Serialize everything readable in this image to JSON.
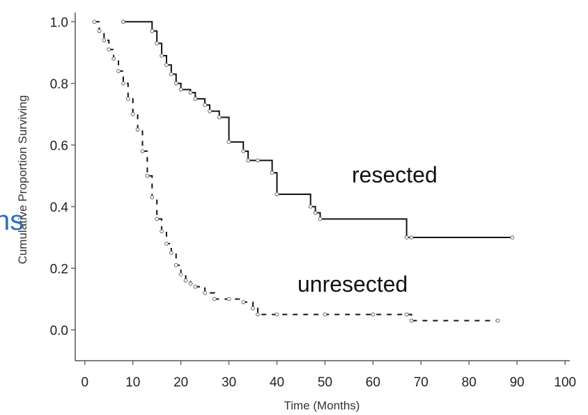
{
  "chart_data": {
    "type": "line",
    "title": "",
    "xlabel": "Time (Months)",
    "ylabel": "Cumulative Proportion Surviving",
    "xlim": [
      -2,
      101
    ],
    "ylim": [
      -0.1,
      1.03
    ],
    "xticks": [
      0,
      10,
      20,
      30,
      40,
      50,
      60,
      70,
      80,
      90,
      100
    ],
    "xtick_labels": [
      "0",
      "10",
      "20",
      "30",
      "40",
      "50",
      "60",
      "70",
      "80",
      "90",
      "100"
    ],
    "yticks": [
      0.0,
      0.2,
      0.4,
      0.6,
      0.8,
      1.0
    ],
    "ytick_labels": [
      "0.0",
      "0.2",
      "0.4",
      "0.6",
      "0.8",
      "1.0"
    ],
    "grid": false,
    "series": [
      {
        "name": "resected",
        "color": "#111111",
        "style": "solid",
        "x": [
          8,
          14,
          15,
          16,
          17,
          18,
          19,
          20,
          22,
          23,
          25,
          26,
          28,
          30,
          33,
          34,
          36,
          39,
          40,
          47,
          48,
          49,
          67,
          68,
          89
        ],
        "y": [
          1.0,
          0.97,
          0.93,
          0.89,
          0.86,
          0.83,
          0.8,
          0.78,
          0.77,
          0.75,
          0.73,
          0.71,
          0.69,
          0.61,
          0.58,
          0.55,
          0.55,
          0.51,
          0.44,
          0.4,
          0.38,
          0.36,
          0.3,
          0.3,
          0.3
        ]
      },
      {
        "name": "unresected",
        "color": "#111111",
        "style": "dashed",
        "x": [
          2,
          3,
          4,
          5,
          6,
          7,
          8,
          9,
          10,
          11,
          12,
          13,
          14,
          15,
          16,
          17,
          18,
          19,
          20,
          21,
          22,
          23,
          25,
          27,
          30,
          33,
          35,
          36,
          40,
          50,
          60,
          67,
          68,
          86
        ],
        "y": [
          1.0,
          0.97,
          0.94,
          0.91,
          0.88,
          0.84,
          0.8,
          0.75,
          0.7,
          0.65,
          0.58,
          0.5,
          0.43,
          0.36,
          0.32,
          0.28,
          0.25,
          0.21,
          0.18,
          0.16,
          0.15,
          0.14,
          0.12,
          0.1,
          0.1,
          0.09,
          0.07,
          0.05,
          0.05,
          0.05,
          0.05,
          0.05,
          0.03,
          0.03
        ]
      }
    ]
  },
  "annotations": {
    "resected_label": "resected",
    "unresected_label": "unresected",
    "stray_text": "ns"
  }
}
